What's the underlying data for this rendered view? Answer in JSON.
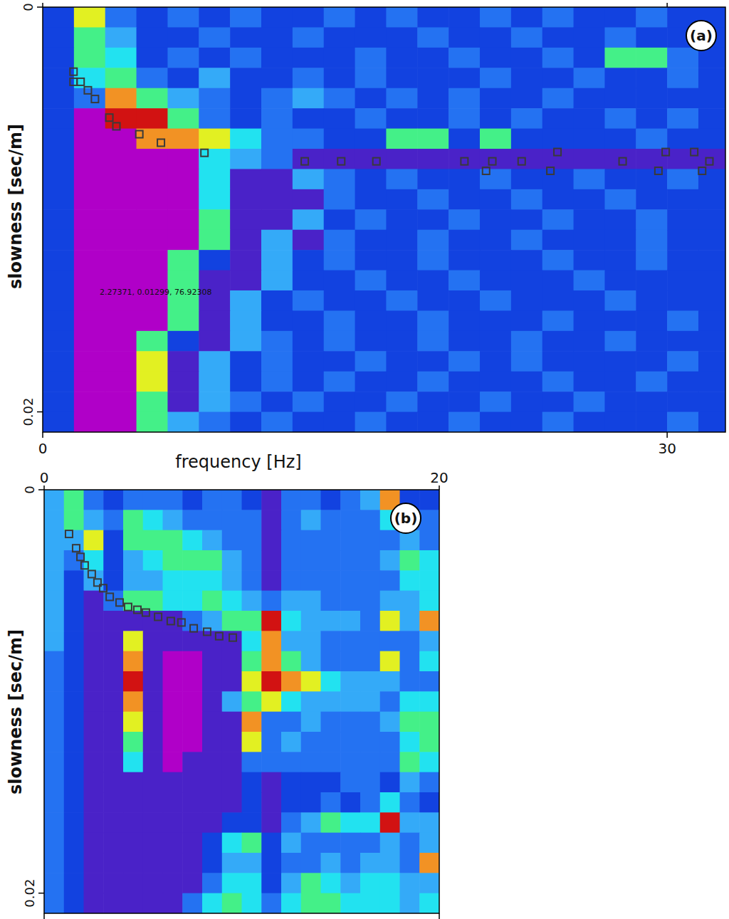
{
  "chart_data": [
    {
      "type": "heatmap",
      "panel": "(a)",
      "x_label": "frequency [Hz]",
      "y_label": "slowness [sec/m]",
      "annotation": "2.27371, 0.01299, 76.92308",
      "xlim": [
        0,
        32.8
      ],
      "ylim": [
        0,
        0.021
      ],
      "xticks": [
        0,
        30
      ],
      "yticks": [
        0,
        0.02
      ],
      "color_range": [
        0,
        9
      ],
      "x_edges": [
        0,
        1.5,
        3,
        4.5,
        6,
        7.5,
        9,
        10.5,
        12,
        13.5,
        15,
        16.5,
        18,
        19.5,
        21,
        22.5,
        24,
        25.5,
        27,
        28.5,
        30,
        31.5,
        33
      ],
      "y_edges": [
        0,
        0.001,
        0.002,
        0.003,
        0.004,
        0.005,
        0.006,
        0.007,
        0.008,
        0.009,
        0.01,
        0.011,
        0.012,
        0.013,
        0.014,
        0.015,
        0.016,
        0.017,
        0.018,
        0.019,
        0.02,
        0.021
      ],
      "cells": [
        [
          2,
          7,
          3,
          2,
          3,
          2,
          3,
          2,
          2,
          3,
          2,
          3,
          2,
          2,
          3,
          2,
          3,
          2,
          2,
          3,
          2,
          2
        ],
        [
          2,
          6,
          4,
          2,
          2,
          3,
          2,
          2,
          3,
          2,
          2,
          2,
          3,
          2,
          2,
          3,
          2,
          2,
          3,
          2,
          2,
          2
        ],
        [
          2,
          6,
          5,
          2,
          3,
          2,
          3,
          2,
          2,
          2,
          3,
          2,
          2,
          3,
          2,
          2,
          3,
          2,
          6,
          6,
          3,
          2
        ],
        [
          2,
          5,
          6,
          3,
          2,
          4,
          2,
          2,
          3,
          2,
          3,
          2,
          2,
          2,
          3,
          2,
          2,
          3,
          2,
          2,
          3,
          2
        ],
        [
          2,
          3,
          8,
          6,
          4,
          3,
          2,
          3,
          4,
          3,
          2,
          3,
          2,
          3,
          2,
          2,
          3,
          2,
          2,
          2,
          2,
          2
        ],
        [
          2,
          0,
          9,
          9,
          6,
          3,
          2,
          3,
          2,
          2,
          3,
          2,
          2,
          3,
          2,
          3,
          2,
          2,
          3,
          2,
          3,
          2
        ],
        [
          2,
          0,
          0,
          8,
          8,
          7,
          5,
          3,
          3,
          2,
          2,
          6,
          6,
          2,
          6,
          2,
          2,
          2,
          2,
          3,
          2,
          2
        ],
        [
          2,
          0,
          0,
          0,
          0,
          5,
          4,
          3,
          1,
          1,
          1,
          1,
          1,
          1,
          1,
          1,
          1,
          1,
          1,
          1,
          1,
          1
        ],
        [
          2,
          0,
          0,
          0,
          0,
          5,
          1,
          1,
          4,
          3,
          2,
          3,
          2,
          2,
          3,
          2,
          2,
          3,
          2,
          2,
          3,
          2
        ],
        [
          2,
          0,
          0,
          0,
          0,
          5,
          1,
          1,
          1,
          3,
          2,
          2,
          3,
          2,
          2,
          3,
          2,
          2,
          3,
          2,
          2,
          2
        ],
        [
          2,
          0,
          0,
          0,
          0,
          6,
          1,
          1,
          4,
          2,
          3,
          2,
          2,
          3,
          2,
          2,
          3,
          2,
          2,
          3,
          2,
          2
        ],
        [
          2,
          0,
          0,
          0,
          0,
          6,
          1,
          4,
          1,
          3,
          2,
          2,
          3,
          2,
          2,
          3,
          2,
          2,
          2,
          3,
          2,
          2
        ],
        [
          2,
          0,
          0,
          0,
          6,
          2,
          1,
          4,
          2,
          3,
          2,
          2,
          3,
          2,
          2,
          2,
          3,
          2,
          2,
          3,
          2,
          2
        ],
        [
          2,
          0,
          0,
          0,
          6,
          1,
          1,
          4,
          2,
          2,
          3,
          2,
          2,
          3,
          2,
          2,
          2,
          3,
          2,
          2,
          2,
          2
        ],
        [
          2,
          0,
          0,
          0,
          6,
          1,
          4,
          2,
          3,
          2,
          2,
          3,
          2,
          2,
          3,
          2,
          2,
          2,
          3,
          2,
          2,
          2
        ],
        [
          2,
          0,
          0,
          0,
          6,
          1,
          4,
          2,
          2,
          3,
          2,
          2,
          3,
          2,
          2,
          2,
          3,
          2,
          2,
          2,
          3,
          2
        ],
        [
          2,
          0,
          0,
          6,
          2,
          1,
          4,
          3,
          2,
          3,
          2,
          2,
          3,
          2,
          2,
          3,
          2,
          2,
          3,
          2,
          2,
          2
        ],
        [
          2,
          0,
          0,
          7,
          1,
          4,
          2,
          3,
          2,
          2,
          3,
          2,
          2,
          3,
          2,
          3,
          2,
          2,
          2,
          2,
          3,
          2
        ],
        [
          2,
          0,
          0,
          7,
          1,
          4,
          2,
          3,
          2,
          3,
          2,
          2,
          3,
          2,
          2,
          2,
          3,
          2,
          2,
          3,
          2,
          2
        ],
        [
          2,
          0,
          0,
          6,
          1,
          4,
          3,
          2,
          3,
          2,
          2,
          3,
          2,
          2,
          3,
          2,
          2,
          3,
          2,
          2,
          2,
          2
        ],
        [
          2,
          0,
          0,
          6,
          4,
          3,
          2,
          3,
          2,
          2,
          3,
          2,
          2,
          3,
          2,
          2,
          3,
          2,
          2,
          2,
          3,
          2
        ]
      ],
      "picks": {
        "marker": "square",
        "x": [
          1.48,
          1.48,
          1.82,
          2.17,
          2.51,
          3.2,
          3.54,
          4.64,
          5.68,
          7.77,
          12.59,
          14.34,
          16.03,
          20.26,
          21.3,
          21.6,
          23.01,
          24.39,
          24.73,
          27.86,
          29.58,
          29.93,
          31.3,
          31.68,
          32.03
        ],
        "y": [
          0.00319,
          0.00369,
          0.00369,
          0.00411,
          0.00454,
          0.00546,
          0.00589,
          0.00628,
          0.0067,
          0.0072,
          0.00762,
          0.00762,
          0.00762,
          0.00762,
          0.00809,
          0.00762,
          0.00762,
          0.00809,
          0.00716,
          0.00762,
          0.00809,
          0.00716,
          0.00716,
          0.00809,
          0.00762
        ]
      }
    },
    {
      "type": "heatmap",
      "panel": "(b)",
      "y_label": "slowness [sec/m]",
      "xlim": [
        0,
        20
      ],
      "ylim": [
        0,
        0.021
      ],
      "xticks": [
        0,
        20
      ],
      "yticks": [
        0,
        0.02
      ],
      "color_range": [
        0,
        9
      ],
      "x_edges": [
        0,
        1,
        2,
        3,
        4,
        5,
        6,
        7,
        8,
        9,
        10,
        11,
        12,
        13,
        14,
        15,
        16,
        17,
        18,
        19,
        20
      ],
      "y_edges": [
        0,
        0.001,
        0.002,
        0.003,
        0.004,
        0.005,
        0.006,
        0.007,
        0.008,
        0.009,
        0.01,
        0.011,
        0.012,
        0.013,
        0.014,
        0.015,
        0.016,
        0.017,
        0.018,
        0.019,
        0.02,
        0.021
      ],
      "cells": [
        [
          4,
          6,
          3,
          2,
          3,
          3,
          3,
          2,
          3,
          3,
          2,
          1,
          3,
          3,
          2,
          3,
          4,
          8,
          2,
          2
        ],
        [
          4,
          6,
          4,
          3,
          6,
          5,
          4,
          3,
          3,
          3,
          3,
          1,
          3,
          4,
          3,
          3,
          3,
          5,
          3,
          3
        ],
        [
          4,
          4,
          7,
          2,
          6,
          6,
          6,
          5,
          4,
          3,
          3,
          1,
          3,
          3,
          3,
          3,
          3,
          3,
          4,
          3
        ],
        [
          4,
          3,
          5,
          2,
          4,
          5,
          6,
          6,
          6,
          4,
          3,
          1,
          3,
          3,
          3,
          3,
          3,
          4,
          6,
          5
        ],
        [
          4,
          2,
          4,
          2,
          4,
          4,
          5,
          5,
          5,
          4,
          3,
          1,
          3,
          3,
          3,
          3,
          3,
          3,
          5,
          5
        ],
        [
          4,
          2,
          1,
          3,
          6,
          6,
          5,
          5,
          6,
          5,
          4,
          3,
          4,
          4,
          3,
          3,
          3,
          4,
          4,
          5
        ],
        [
          4,
          2,
          1,
          1,
          1,
          1,
          1,
          3,
          4,
          6,
          6,
          9,
          5,
          4,
          4,
          4,
          3,
          7,
          4,
          8
        ],
        [
          4,
          2,
          1,
          1,
          7,
          1,
          1,
          1,
          1,
          1,
          5,
          8,
          4,
          4,
          3,
          3,
          3,
          3,
          3,
          4
        ],
        [
          3,
          2,
          1,
          1,
          8,
          1,
          0,
          0,
          1,
          1,
          6,
          8,
          6,
          4,
          3,
          3,
          3,
          7,
          3,
          5
        ],
        [
          3,
          2,
          1,
          1,
          9,
          1,
          0,
          0,
          1,
          1,
          7,
          9,
          8,
          7,
          5,
          4,
          4,
          4,
          3,
          3
        ],
        [
          3,
          2,
          1,
          1,
          8,
          1,
          0,
          0,
          1,
          4,
          6,
          7,
          5,
          4,
          4,
          4,
          4,
          3,
          5,
          5
        ],
        [
          3,
          2,
          1,
          1,
          7,
          1,
          0,
          0,
          1,
          1,
          8,
          3,
          3,
          4,
          3,
          3,
          3,
          4,
          6,
          6
        ],
        [
          3,
          2,
          1,
          1,
          6,
          1,
          0,
          0,
          1,
          1,
          7,
          3,
          4,
          3,
          3,
          3,
          3,
          3,
          5,
          6
        ],
        [
          3,
          2,
          1,
          1,
          5,
          1,
          0,
          1,
          1,
          1,
          3,
          3,
          3,
          3,
          3,
          3,
          3,
          3,
          6,
          5
        ],
        [
          3,
          2,
          1,
          1,
          1,
          1,
          1,
          1,
          1,
          1,
          2,
          1,
          2,
          2,
          2,
          3,
          3,
          2,
          4,
          3
        ],
        [
          3,
          2,
          1,
          1,
          1,
          1,
          1,
          1,
          1,
          1,
          2,
          1,
          2,
          2,
          3,
          2,
          3,
          5,
          3,
          2
        ],
        [
          3,
          2,
          1,
          1,
          1,
          1,
          1,
          1,
          1,
          2,
          2,
          1,
          3,
          4,
          6,
          5,
          5,
          9,
          4,
          4
        ],
        [
          3,
          2,
          1,
          1,
          1,
          1,
          1,
          1,
          2,
          5,
          6,
          2,
          4,
          3,
          3,
          3,
          3,
          4,
          3,
          4
        ],
        [
          3,
          2,
          1,
          1,
          1,
          1,
          1,
          1,
          2,
          4,
          4,
          2,
          3,
          3,
          4,
          3,
          4,
          4,
          3,
          8
        ],
        [
          3,
          2,
          1,
          1,
          1,
          1,
          1,
          1,
          3,
          5,
          5,
          2,
          4,
          6,
          5,
          4,
          5,
          5,
          4,
          4
        ],
        [
          3,
          2,
          1,
          1,
          1,
          1,
          1,
          3,
          5,
          6,
          5,
          3,
          5,
          6,
          6,
          5,
          5,
          5,
          4,
          5
        ]
      ],
      "picks": {
        "marker": "square",
        "x": [
          1.26,
          1.62,
          1.84,
          2.05,
          2.41,
          2.7,
          2.99,
          3.32,
          3.82,
          4.25,
          4.72,
          5.15,
          5.77,
          6.41,
          6.95,
          7.57,
          8.25,
          8.86,
          9.55
        ],
        "y": [
          0.00219,
          0.0029,
          0.00333,
          0.00375,
          0.00418,
          0.0046,
          0.00488,
          0.00531,
          0.00559,
          0.00581,
          0.00595,
          0.00609,
          0.0063,
          0.00651,
          0.00658,
          0.00687,
          0.00704,
          0.00726,
          0.00733
        ]
      }
    }
  ]
}
